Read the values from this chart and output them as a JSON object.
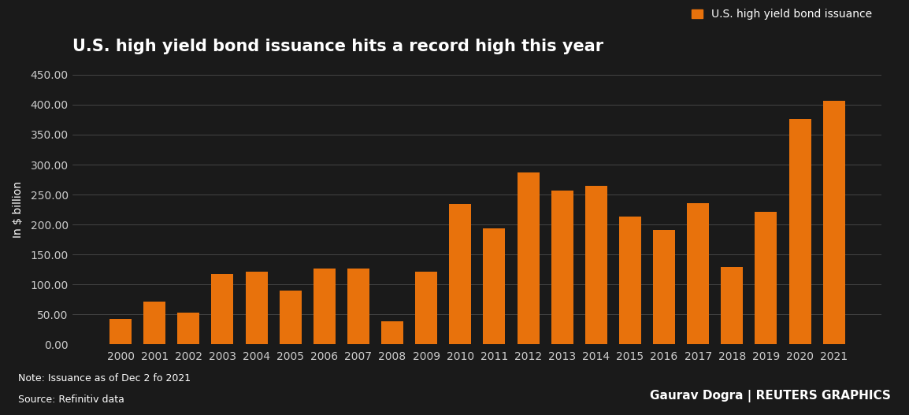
{
  "title": "U.S. high yield bond issuance hits a record high this year",
  "ylabel": "In $ billion",
  "legend_label": "U.S. high yield bond issuance",
  "background_color": "#1a1a1a",
  "bar_color": "#E8720C",
  "text_color": "#ffffff",
  "grid_color": "#555555",
  "axis_label_color": "#cccccc",
  "note_line1": "Note: Issuance as of Dec 2 fo 2021",
  "note_line2": "Source: Refinitiv data",
  "credit": "Gaurav Dogra | REUTERS GRAPHICS",
  "categories": [
    2000,
    2001,
    2002,
    2003,
    2004,
    2005,
    2006,
    2007,
    2008,
    2009,
    2010,
    2011,
    2012,
    2013,
    2014,
    2015,
    2016,
    2017,
    2018,
    2019,
    2020,
    2021
  ],
  "values": [
    42,
    72,
    53,
    118,
    121,
    90,
    126,
    127,
    39,
    121,
    235,
    193,
    287,
    257,
    265,
    214,
    191,
    236,
    129,
    221,
    376,
    407
  ],
  "ylim": [
    0,
    450
  ],
  "yticks": [
    0,
    50,
    100,
    150,
    200,
    250,
    300,
    350,
    400,
    450
  ],
  "title_fontsize": 15,
  "tick_fontsize": 10,
  "ylabel_fontsize": 10,
  "legend_fontsize": 10,
  "note_fontsize": 9,
  "credit_fontsize": 11
}
